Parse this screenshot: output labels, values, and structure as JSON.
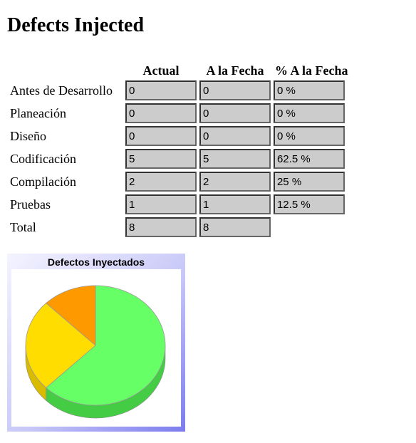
{
  "page": {
    "title": "Defects Injected"
  },
  "table": {
    "headers": [
      "",
      "Actual",
      "A la Fecha",
      "% A la Fecha"
    ],
    "rows": [
      {
        "label": "Antes de Desarrollo",
        "actual": "0",
        "to_date": "0",
        "pct": "0 %"
      },
      {
        "label": "Planeación",
        "actual": "0",
        "to_date": "0",
        "pct": "0 %"
      },
      {
        "label": "Diseño",
        "actual": "0",
        "to_date": "0",
        "pct": "0 %"
      },
      {
        "label": "Codificación",
        "actual": "5",
        "to_date": "5",
        "pct": "62.5 %"
      },
      {
        "label": "Compilación",
        "actual": "2",
        "to_date": "2",
        "pct": "25 %"
      },
      {
        "label": "Pruebas",
        "actual": "1",
        "to_date": "1",
        "pct": "12.5 %"
      },
      {
        "label": "Total",
        "actual": "8",
        "to_date": "8"
      }
    ]
  },
  "chart_data": {
    "type": "pie",
    "title": "Defectos Inyectados",
    "categories": [
      "Codificación",
      "Compilación",
      "Pruebas"
    ],
    "values": [
      5,
      2,
      1
    ],
    "colors": [
      "#66ff66",
      "#ffdd00",
      "#ff9900"
    ],
    "side_colors": [
      "#44cc44",
      "#d9bb00",
      "#d97f00"
    ],
    "style": "3d"
  }
}
